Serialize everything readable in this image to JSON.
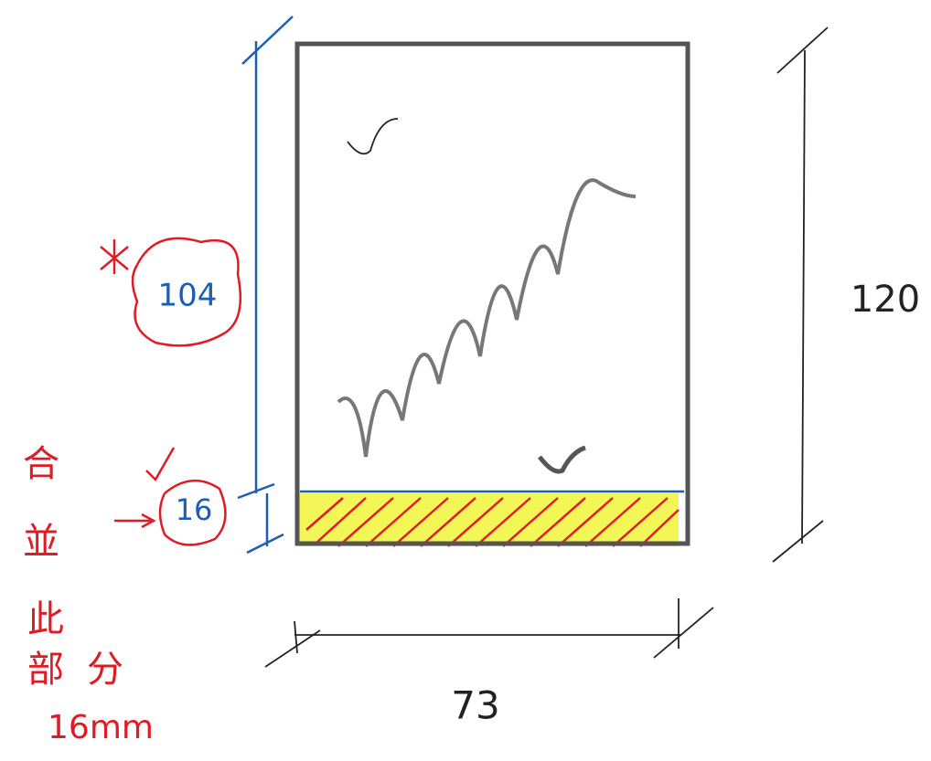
{
  "dimensions": {
    "upper_height": "104",
    "lower_height": "16",
    "total_height": "120",
    "width": "73"
  },
  "note": {
    "lines": [
      "合",
      "並",
      "此",
      "部",
      "分"
    ],
    "measure": "16mm"
  }
}
